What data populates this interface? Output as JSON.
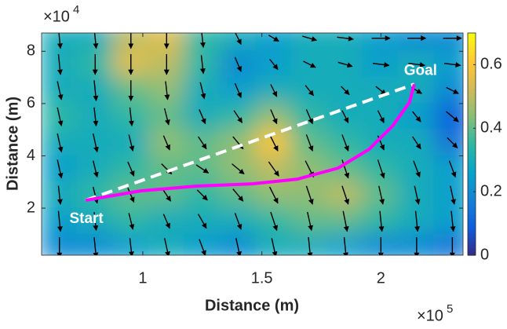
{
  "chart_data": {
    "type": "contour-quiver",
    "xlabel": "Distance (m)",
    "ylabel": "Distance (m)",
    "x_exponent": {
      "base": "×10",
      "power": "5"
    },
    "y_exponent": {
      "base": "×10",
      "power": "4"
    },
    "xlim": [
      0.575,
      2.345
    ],
    "ylim": [
      0.2,
      8.7
    ],
    "xticks": [
      1,
      1.5,
      2
    ],
    "yticks": [
      2,
      4,
      6,
      8
    ],
    "clim": [
      0,
      0.7
    ],
    "cticks": [
      0,
      0.2,
      0.4,
      0.6
    ],
    "colormap": [
      "#352a87",
      "#0f5cdd",
      "#1481d6",
      "#06a4ca",
      "#2eb7a4",
      "#87bf77",
      "#d1bb59",
      "#fec832",
      "#f9fb0e"
    ],
    "field": {
      "x": [
        0.65,
        0.8,
        0.95,
        1.1,
        1.25,
        1.4,
        1.55,
        1.7,
        1.85,
        2.0,
        2.15,
        2.3
      ],
      "y": [
        8.5,
        7.5,
        6.5,
        5.5,
        4.5,
        3.5,
        2.5,
        1.5,
        0.5
      ],
      "z": [
        [
          0.3,
          0.3,
          0.5,
          0.55,
          0.35,
          0.3,
          0.25,
          0.3,
          0.3,
          0.25,
          0.2,
          0.2
        ],
        [
          0.3,
          0.35,
          0.55,
          0.5,
          0.35,
          0.2,
          0.25,
          0.3,
          0.3,
          0.25,
          0.3,
          0.25
        ],
        [
          0.3,
          0.3,
          0.4,
          0.45,
          0.3,
          0.25,
          0.3,
          0.3,
          0.3,
          0.3,
          0.3,
          0.2
        ],
        [
          0.35,
          0.3,
          0.35,
          0.4,
          0.3,
          0.35,
          0.45,
          0.35,
          0.3,
          0.3,
          0.25,
          0.1
        ],
        [
          0.3,
          0.3,
          0.3,
          0.45,
          0.4,
          0.45,
          0.6,
          0.4,
          0.35,
          0.3,
          0.3,
          0.15
        ],
        [
          0.25,
          0.3,
          0.35,
          0.4,
          0.4,
          0.45,
          0.5,
          0.45,
          0.4,
          0.35,
          0.3,
          0.25
        ],
        [
          0.3,
          0.35,
          0.4,
          0.4,
          0.35,
          0.4,
          0.45,
          0.45,
          0.5,
          0.4,
          0.3,
          0.25
        ],
        [
          0.25,
          0.3,
          0.35,
          0.3,
          0.3,
          0.3,
          0.35,
          0.4,
          0.4,
          0.35,
          0.3,
          0.25
        ],
        [
          0.2,
          0.2,
          0.25,
          0.3,
          0.25,
          0.2,
          0.3,
          0.3,
          0.25,
          0.2,
          0.2,
          0.15
        ]
      ],
      "u": [
        [
          0.1,
          0.1,
          0,
          0,
          0.1,
          0.3,
          0.5,
          0.7,
          0.8,
          0.9,
          0.9,
          0.9
        ],
        [
          0.1,
          0,
          0,
          0,
          0.1,
          0.3,
          0.4,
          0.6,
          0.7,
          0.8,
          0.8,
          0.8
        ],
        [
          0.2,
          0.1,
          0,
          0.1,
          0.2,
          0.3,
          0.3,
          0.4,
          0.4,
          0.5,
          0.5,
          0.6
        ],
        [
          0.2,
          0.1,
          0.1,
          0.2,
          0.3,
          0.4,
          0.3,
          0.3,
          0.3,
          0.3,
          0.4,
          0.6
        ],
        [
          0.2,
          0.2,
          0.2,
          0.3,
          0.4,
          0.5,
          0.4,
          0.3,
          0.3,
          0.3,
          0.4,
          0.5
        ],
        [
          0.2,
          0.2,
          0.3,
          0.5,
          0.6,
          0.6,
          0.5,
          0.4,
          0.3,
          0.3,
          0.3,
          0.3
        ],
        [
          0.1,
          0.2,
          0.3,
          0.4,
          0.5,
          0.5,
          0.4,
          0.3,
          0.3,
          0.2,
          0.2,
          0.2
        ],
        [
          0.1,
          0.1,
          0.2,
          0.3,
          0.4,
          0.3,
          0.3,
          0.2,
          0.2,
          0.1,
          0.1,
          0.1
        ],
        [
          0,
          0.1,
          0.1,
          0.2,
          0.3,
          0.2,
          0.2,
          0.1,
          0.1,
          0,
          0,
          0
        ]
      ],
      "v": [
        [
          -1,
          -1,
          -1,
          -1,
          -0.9,
          -0.6,
          -0.3,
          -0.2,
          -0.1,
          0,
          0,
          0
        ],
        [
          -1,
          -1,
          -1,
          -1,
          -0.9,
          -0.7,
          -0.5,
          -0.3,
          -0.2,
          -0.1,
          -0.1,
          -0.1
        ],
        [
          -0.9,
          -1,
          -1,
          -0.9,
          -0.8,
          -0.7,
          -0.6,
          -0.5,
          -0.4,
          -0.4,
          -0.3,
          -0.3
        ],
        [
          -0.9,
          -0.9,
          -0.9,
          -0.8,
          -0.7,
          -0.6,
          -0.7,
          -0.7,
          -0.6,
          -0.6,
          -0.5,
          -0.5
        ],
        [
          -0.9,
          -0.9,
          -0.8,
          -0.7,
          -0.6,
          -0.6,
          -0.8,
          -0.8,
          -0.8,
          -0.7,
          -0.6,
          -0.5
        ],
        [
          -0.9,
          -0.8,
          -0.7,
          -0.5,
          -0.4,
          -0.5,
          -0.7,
          -0.8,
          -0.9,
          -0.9,
          -0.8,
          -0.8
        ],
        [
          -0.9,
          -0.8,
          -0.7,
          -0.6,
          -0.5,
          -0.6,
          -0.8,
          -0.9,
          -0.9,
          -0.9,
          -0.9,
          -0.9
        ],
        [
          -1,
          -0.9,
          -0.8,
          -0.7,
          -0.7,
          -0.8,
          -0.9,
          -0.9,
          -1,
          -1,
          -1,
          -1
        ],
        [
          -1,
          -1,
          -0.9,
          -0.9,
          -0.8,
          -0.9,
          -0.9,
          -1,
          -1,
          -1,
          -1,
          -1
        ]
      ]
    },
    "path": {
      "color": "#ff00ff",
      "x": [
        0.76,
        0.99,
        1.22,
        1.46,
        1.65,
        1.82,
        1.95,
        2.05,
        2.12,
        2.14
      ],
      "y": [
        2.3,
        2.66,
        2.84,
        2.93,
        3.11,
        3.53,
        4.25,
        5.15,
        6.05,
        6.74
      ]
    },
    "straight_line": {
      "color": "#ffffff",
      "x": [
        0.76,
        2.14
      ],
      "y": [
        2.3,
        6.74
      ]
    },
    "start_label": "Start",
    "goal_label": "Goal"
  }
}
